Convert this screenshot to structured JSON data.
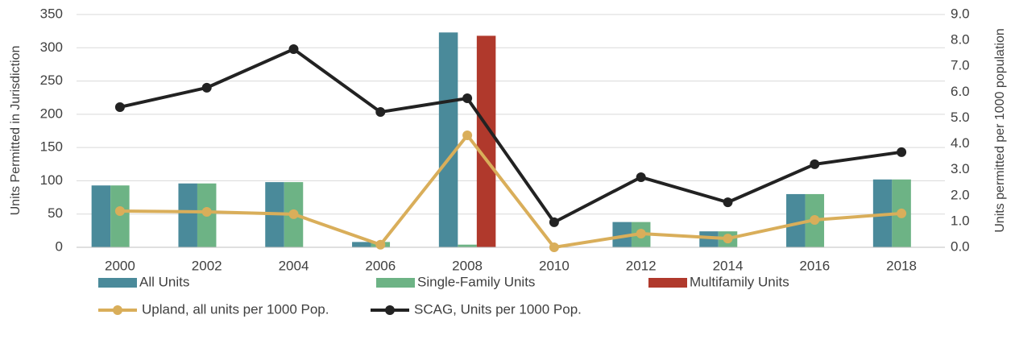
{
  "chart_data": {
    "type": "bar_line",
    "categories": [
      "2000",
      "2002",
      "2004",
      "2006",
      "2008",
      "2010",
      "2012",
      "2014",
      "2016",
      "2018"
    ],
    "ylabel": "Units Permitted in Jurisdiction",
    "y2label": "Units permitted per 1000 population",
    "ylim": [
      0,
      350
    ],
    "yticks": [
      0,
      50,
      100,
      150,
      200,
      250,
      300,
      350
    ],
    "y2lim": [
      0,
      9
    ],
    "y2ticks": [
      {
        "value": 0,
        "label": "0.0"
      },
      {
        "value": 1,
        "label": "1.0"
      },
      {
        "value": 2,
        "label": "2.0"
      },
      {
        "value": 3,
        "label": "3.0"
      },
      {
        "value": 4,
        "label": "4.0"
      },
      {
        "value": 5,
        "label": "5.0"
      },
      {
        "value": 6,
        "label": "6.0"
      },
      {
        "value": 7,
        "label": "7.0"
      },
      {
        "value": 8,
        "label": "8.0"
      },
      {
        "value": 9,
        "label": "9.0"
      }
    ],
    "grid": true,
    "legend": "bottom",
    "series": [
      {
        "name": "All Units",
        "kind": "bar",
        "color": "#4a8a9a",
        "values": [
          93,
          96,
          98,
          8,
          323,
          0,
          38,
          24,
          80,
          102
        ]
      },
      {
        "name": "Single-Family Units",
        "kind": "bar",
        "color": "#6db385",
        "values": [
          93,
          96,
          98,
          8,
          4,
          0,
          38,
          24,
          80,
          102
        ]
      },
      {
        "name": "Multifamily Units",
        "kind": "bar",
        "color": "#b0392c",
        "values": [
          0,
          0,
          0,
          0,
          318,
          0,
          0,
          0,
          0,
          0
        ]
      },
      {
        "name": "Upland, all units per 1000 Pop.",
        "kind": "line",
        "axis": "y2",
        "color": "#d9ae5a",
        "values": [
          1.4,
          1.37,
          1.28,
          0.1,
          4.33,
          0.0,
          0.53,
          0.34,
          1.06,
          1.31
        ]
      },
      {
        "name": "SCAG, Units per 1000 Pop.",
        "kind": "line",
        "axis": "y2",
        "color": "#222222",
        "values": [
          5.42,
          6.17,
          7.66,
          5.23,
          5.76,
          0.97,
          2.71,
          1.74,
          3.21,
          3.68
        ]
      }
    ]
  }
}
